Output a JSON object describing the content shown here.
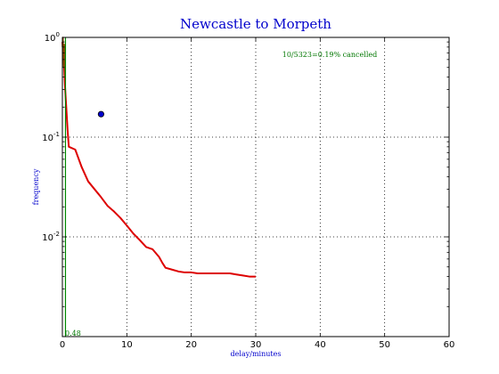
{
  "chart_data": {
    "type": "line",
    "title": "Newcastle to Morpeth",
    "xlabel": "delay/minutes",
    "ylabel": "frequency",
    "xlim": [
      0,
      60
    ],
    "ylim": [
      0.001,
      1.0
    ],
    "yscale": "log",
    "grid": true,
    "x_ticks": [
      "0",
      "10",
      "20",
      "30",
      "40",
      "50",
      "60"
    ],
    "y_ticks": [
      {
        "value": 1.0,
        "base": "10",
        "exp": "0"
      },
      {
        "value": 0.1,
        "base": "10",
        "exp": "-1"
      },
      {
        "value": 0.01,
        "base": "10",
        "exp": "-2"
      }
    ],
    "annotation": "10/5323=0.19% cancelled",
    "marker_label": "0.48",
    "colors": {
      "curve": "#dd0000",
      "green_line": "#008800",
      "point": "#0000cc",
      "text_blue": "#0000cc",
      "text_green": "#007700"
    },
    "series": [
      {
        "style": "red-curve",
        "x": [
          0,
          0.2,
          0.4,
          0.6,
          0.8,
          1,
          2,
          3,
          4,
          5,
          6,
          7,
          8,
          9,
          10,
          11,
          12,
          13,
          14,
          15,
          15.5,
          16,
          17,
          18,
          19,
          20,
          21,
          22,
          23,
          24,
          25,
          26,
          27,
          28,
          29,
          30
        ],
        "y": [
          0.9,
          0.65,
          0.33,
          0.2,
          0.12,
          0.08,
          0.075,
          0.05,
          0.036,
          0.03,
          0.025,
          0.0205,
          0.018,
          0.0155,
          0.013,
          0.0108,
          0.0093,
          0.0079,
          0.0075,
          0.0063,
          0.0055,
          0.0049,
          0.0047,
          0.0045,
          0.0044,
          0.0044,
          0.0043,
          0.0043,
          0.0043,
          0.0043,
          0.0043,
          0.0043,
          0.0042,
          0.0041,
          0.004,
          0.004
        ]
      },
      {
        "style": "brown-spike",
        "x": [
          0,
          0.1,
          0.2,
          0.3,
          0.4
        ],
        "y": [
          0.8,
          1.0,
          0.5,
          0.85,
          0.4
        ]
      },
      {
        "style": "green-line",
        "x": [
          0.48,
          0.48
        ],
        "y": [
          0.001,
          1.0
        ]
      },
      {
        "style": "blue-point",
        "x": [
          6
        ],
        "y": [
          0.17
        ]
      }
    ]
  }
}
